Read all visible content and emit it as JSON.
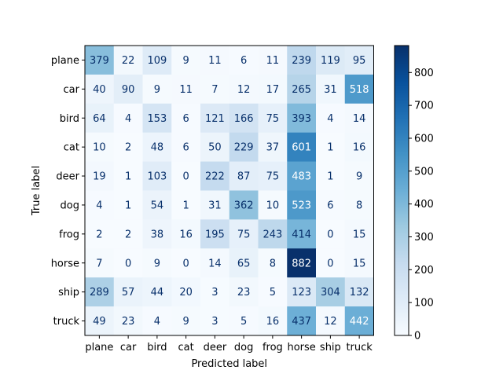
{
  "chart_data": {
    "type": "heatmap",
    "xlabel": "Predicted label",
    "ylabel": "True label",
    "x_labels": [
      "plane",
      "car",
      "bird",
      "cat",
      "deer",
      "dog",
      "frog",
      "horse",
      "ship",
      "truck"
    ],
    "y_labels": [
      "plane",
      "car",
      "bird",
      "cat",
      "deer",
      "dog",
      "frog",
      "horse",
      "ship",
      "truck"
    ],
    "matrix": [
      [
        379,
        22,
        109,
        9,
        11,
        6,
        11,
        239,
        119,
        95
      ],
      [
        40,
        90,
        9,
        11,
        7,
        12,
        17,
        265,
        31,
        518
      ],
      [
        64,
        4,
        153,
        6,
        121,
        166,
        75,
        393,
        4,
        14
      ],
      [
        10,
        2,
        48,
        6,
        50,
        229,
        37,
        601,
        1,
        16
      ],
      [
        19,
        1,
        103,
        0,
        222,
        87,
        75,
        483,
        1,
        9
      ],
      [
        4,
        1,
        54,
        1,
        31,
        362,
        10,
        523,
        6,
        8
      ],
      [
        2,
        2,
        38,
        16,
        195,
        75,
        243,
        414,
        0,
        15
      ],
      [
        7,
        0,
        9,
        0,
        14,
        65,
        8,
        882,
        0,
        15
      ],
      [
        289,
        57,
        44,
        20,
        3,
        23,
        5,
        123,
        304,
        132
      ],
      [
        49,
        23,
        4,
        9,
        3,
        5,
        16,
        437,
        12,
        442
      ]
    ],
    "colormap": "Blues",
    "vmin": 0,
    "vmax": 882,
    "colorbar_ticks": [
      0,
      100,
      200,
      300,
      400,
      500,
      600,
      700,
      800
    ],
    "text_colors": {
      "dark_cell": "#ffffff",
      "light_cell": "#08306b"
    },
    "grid": false,
    "colorbar_placement": "right"
  }
}
